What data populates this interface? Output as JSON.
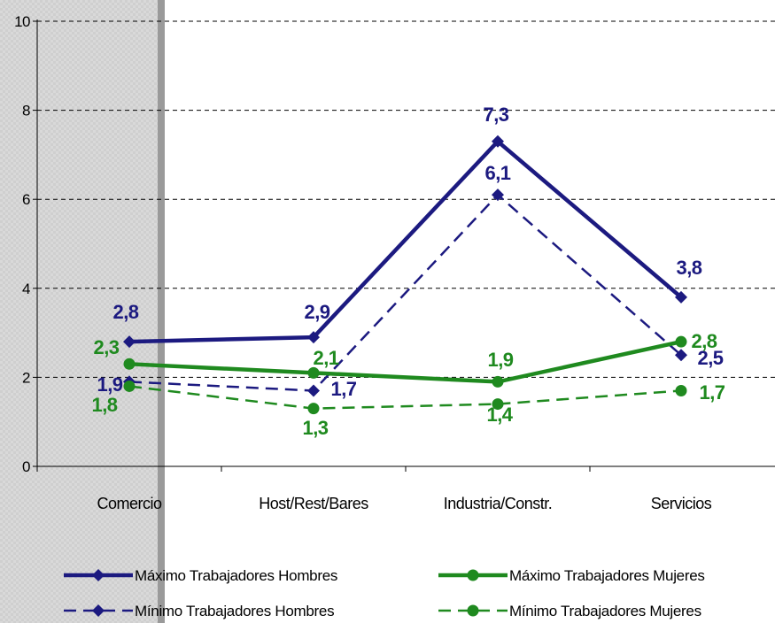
{
  "chart_data": {
    "type": "line",
    "categories": [
      "Comercio",
      "Host/Rest/Bares",
      "Industria/Constr.",
      "Servicios"
    ],
    "ylim": [
      0,
      10
    ],
    "yticks": [
      0,
      2,
      4,
      6,
      8,
      10
    ],
    "grid": true,
    "legend_position": "bottom",
    "series": [
      {
        "name": "Máximo Trabajadores Hombres",
        "values": [
          2.8,
          2.9,
          7.3,
          3.8
        ],
        "labels": [
          "2,8",
          "2,9",
          "7,3",
          "3,8"
        ],
        "color": "#1c1a80",
        "style": "solid",
        "marker": "diamond"
      },
      {
        "name": "Mínimo Trabajadores Hombres",
        "values": [
          1.9,
          1.7,
          6.1,
          2.5
        ],
        "labels": [
          "1,9",
          "1,7",
          "6,1",
          "2,5"
        ],
        "color": "#1c1a80",
        "style": "dashed",
        "marker": "diamond"
      },
      {
        "name": "Máximo Trabajadores Mujeres",
        "values": [
          2.3,
          2.1,
          1.9,
          2.8
        ],
        "labels": [
          "2,3",
          "2,1",
          "1,9",
          "2,8"
        ],
        "color": "#1f8a1f",
        "style": "solid",
        "marker": "circle"
      },
      {
        "name": "Mínimo Trabajadores Mujeres",
        "values": [
          1.8,
          1.3,
          1.4,
          1.7
        ],
        "labels": [
          "1,8",
          "1,3",
          "1,4",
          "1,7"
        ],
        "color": "#1f8a1f",
        "style": "dashed",
        "marker": "circle"
      }
    ]
  }
}
